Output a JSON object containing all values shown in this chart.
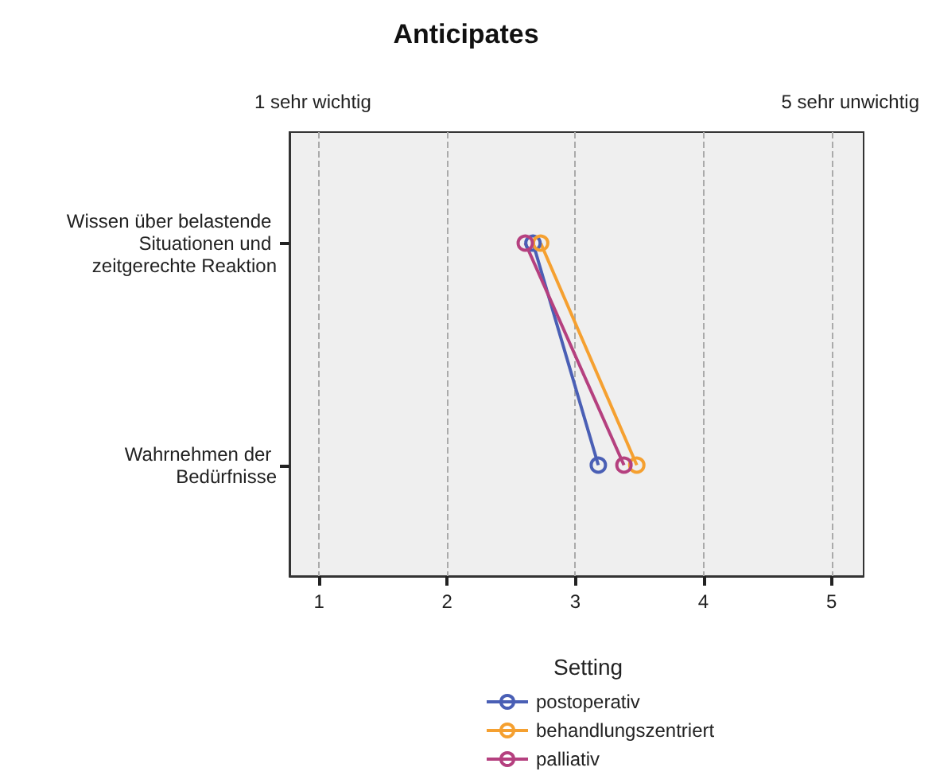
{
  "chart_data": {
    "type": "line",
    "orientation": "horizontal",
    "title": "Anticipates",
    "legend_title": "Setting",
    "categories": [
      "Wissen über belastende Situationen und zeitgerechte Reaktion",
      "Wahrnehmen der Bedürfnisse"
    ],
    "annotations": [
      "1 sehr wichtig",
      "5 sehr unwichtig"
    ],
    "xlim": [
      0.77,
      5.25
    ],
    "xticks": [
      1,
      2,
      3,
      4,
      5
    ],
    "grid": "x",
    "legend": "bottom",
    "marker": "circle",
    "line_style": "solid",
    "series": [
      {
        "name": "postoperativ",
        "color": "#4a5fb5",
        "values": [
          2.67,
          3.18
        ]
      },
      {
        "name": "behandlungszentriert",
        "color": "#f5a030",
        "values": [
          2.73,
          3.48
        ]
      },
      {
        "name": "palliativ",
        "color": "#b5407f",
        "values": [
          2.61,
          3.38
        ]
      }
    ]
  }
}
